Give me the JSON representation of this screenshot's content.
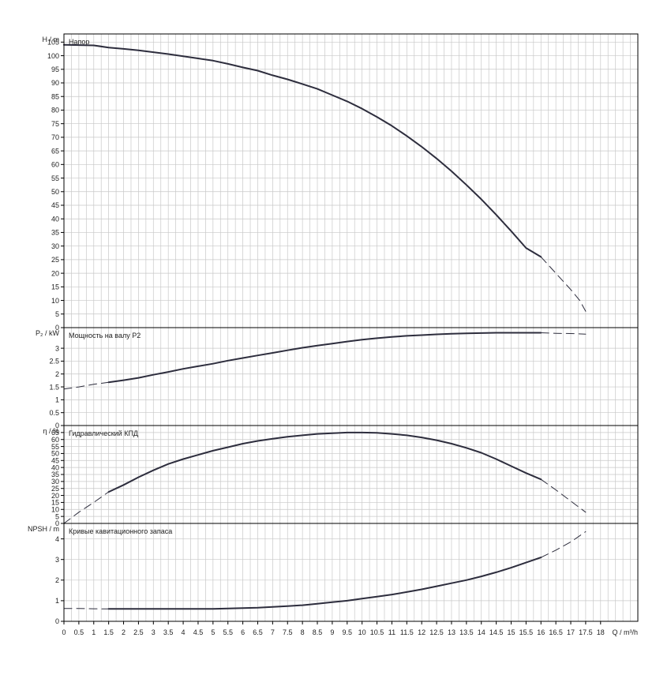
{
  "chart_data": {
    "type": "line",
    "x_axis": {
      "label": "Q / m³/h",
      "ticks": [
        0,
        0.5,
        1,
        1.5,
        2,
        2.5,
        3,
        3.5,
        4,
        4.5,
        5,
        5.5,
        6,
        6.5,
        7,
        7.5,
        8,
        8.5,
        9,
        9.5,
        10,
        10.5,
        11,
        11.5,
        12,
        12.5,
        13,
        13.5,
        14,
        14.5,
        15,
        15.5,
        16,
        16.5,
        17,
        17.5,
        18
      ],
      "tick_labels": [
        "0",
        "0.5",
        "1",
        "1.5",
        "2",
        "2.5",
        "3",
        "3.5",
        "4",
        "4.5",
        "5",
        "5.5",
        "6",
        "6.5",
        "7",
        "7.5",
        "8",
        "8.5",
        "9",
        "9.5",
        "10",
        "10.5",
        "11",
        "11.5",
        "12",
        "12.5",
        "13",
        "13.5",
        "14",
        "14.5",
        "15",
        "15.5",
        "16",
        "16.5",
        "17",
        "17.5",
        "18"
      ],
      "range": [
        0,
        19.25
      ],
      "grid": true
    },
    "panels": [
      {
        "id": "head",
        "title": "Напор",
        "ylabel": "H / m",
        "ylim": [
          0,
          108
        ],
        "yticks": [
          0,
          5,
          10,
          15,
          20,
          25,
          30,
          35,
          40,
          45,
          50,
          55,
          60,
          65,
          70,
          75,
          80,
          85,
          90,
          95,
          100,
          105
        ],
        "series_solid": [
          [
            0,
            104
          ],
          [
            1,
            103.8
          ],
          [
            1.5,
            103
          ],
          [
            2,
            102.5
          ],
          [
            2.5,
            102
          ],
          [
            3,
            101.3
          ],
          [
            3.5,
            100.6
          ],
          [
            4,
            99.8
          ],
          [
            4.5,
            99
          ],
          [
            5,
            98.2
          ],
          [
            5.5,
            97
          ],
          [
            6,
            95.7
          ],
          [
            6.5,
            94.5
          ],
          [
            7,
            92.8
          ],
          [
            7.5,
            91.3
          ],
          [
            8,
            89.6
          ],
          [
            8.5,
            87.8
          ],
          [
            9,
            85.5
          ],
          [
            9.5,
            83.2
          ],
          [
            10,
            80.5
          ],
          [
            10.5,
            77.5
          ],
          [
            11,
            74.2
          ],
          [
            11.5,
            70.5
          ],
          [
            12,
            66.5
          ],
          [
            12.5,
            62.2
          ],
          [
            13,
            57.5
          ],
          [
            13.5,
            52.5
          ],
          [
            14,
            47.2
          ],
          [
            14.5,
            41.5
          ],
          [
            15,
            35.5
          ],
          [
            15.5,
            29.3
          ],
          [
            16,
            26
          ]
        ],
        "series_dashed": [
          [
            16,
            26
          ],
          [
            16.5,
            20
          ],
          [
            17,
            14
          ],
          [
            17.3,
            10
          ],
          [
            17.5,
            6
          ]
        ]
      },
      {
        "id": "power",
        "title": "Мощность на валу P2",
        "ylabel": "P₂ / kW",
        "ylim": [
          0,
          3.8
        ],
        "yticks": [
          0,
          0.5,
          1,
          1.5,
          2,
          2.5,
          3
        ],
        "series_dashed": [
          [
            0,
            1.42
          ],
          [
            0.5,
            1.5
          ],
          [
            1,
            1.6
          ],
          [
            1.5,
            1.68
          ]
        ],
        "series_solid": [
          [
            1.5,
            1.68
          ],
          [
            2,
            1.76
          ],
          [
            2.5,
            1.85
          ],
          [
            3,
            1.97
          ],
          [
            3.5,
            2.08
          ],
          [
            4,
            2.2
          ],
          [
            4.5,
            2.3
          ],
          [
            5,
            2.4
          ],
          [
            5.5,
            2.52
          ],
          [
            6,
            2.62
          ],
          [
            6.5,
            2.72
          ],
          [
            7,
            2.82
          ],
          [
            7.5,
            2.92
          ],
          [
            8,
            3.02
          ],
          [
            8.5,
            3.1
          ],
          [
            9,
            3.18
          ],
          [
            9.5,
            3.26
          ],
          [
            10,
            3.33
          ],
          [
            10.5,
            3.39
          ],
          [
            11,
            3.44
          ],
          [
            11.5,
            3.48
          ],
          [
            12,
            3.51
          ],
          [
            12.5,
            3.54
          ],
          [
            13,
            3.56
          ],
          [
            13.5,
            3.58
          ],
          [
            14,
            3.59
          ],
          [
            14.5,
            3.6
          ],
          [
            15,
            3.6
          ],
          [
            15.5,
            3.6
          ],
          [
            16,
            3.6
          ]
        ],
        "series_dashed_end": [
          [
            16,
            3.6
          ],
          [
            16.5,
            3.58
          ],
          [
            17,
            3.57
          ],
          [
            17.5,
            3.55
          ]
        ]
      },
      {
        "id": "efficiency",
        "title": "Гидравлический КПД",
        "ylabel": "η / %",
        "ylim": [
          0,
          70
        ],
        "yticks": [
          0,
          5,
          10,
          15,
          20,
          25,
          30,
          35,
          40,
          45,
          50,
          55,
          60,
          65
        ],
        "series_dashed": [
          [
            0,
            0
          ],
          [
            0.5,
            8
          ],
          [
            1,
            15
          ],
          [
            1.5,
            22.5
          ]
        ],
        "series_solid": [
          [
            1.5,
            22.5
          ],
          [
            2,
            27.5
          ],
          [
            2.5,
            33
          ],
          [
            3,
            38
          ],
          [
            3.5,
            42.5
          ],
          [
            4,
            46
          ],
          [
            4.5,
            49
          ],
          [
            5,
            52
          ],
          [
            5.5,
            54.5
          ],
          [
            6,
            57
          ],
          [
            6.5,
            59
          ],
          [
            7,
            60.5
          ],
          [
            7.5,
            62
          ],
          [
            8,
            63
          ],
          [
            8.5,
            64
          ],
          [
            9,
            64.5
          ],
          [
            9.5,
            65
          ],
          [
            10,
            65
          ],
          [
            10.5,
            64.8
          ],
          [
            11,
            64
          ],
          [
            11.5,
            63
          ],
          [
            12,
            61.5
          ],
          [
            12.5,
            59.5
          ],
          [
            13,
            57
          ],
          [
            13.5,
            54
          ],
          [
            14,
            50.5
          ],
          [
            14.5,
            46
          ],
          [
            15,
            41
          ],
          [
            15.5,
            36
          ],
          [
            16,
            31.5
          ]
        ],
        "series_dashed_end": [
          [
            16,
            31.5
          ],
          [
            16.5,
            24
          ],
          [
            17,
            16
          ],
          [
            17.5,
            8
          ]
        ]
      },
      {
        "id": "npsh",
        "title": "Кривые кавитационного запаса",
        "ylabel": "NPSH / m",
        "ylim": [
          0,
          4.75
        ],
        "yticks": [
          0,
          1,
          2,
          3,
          4
        ],
        "series_dashed": [
          [
            0,
            0.62
          ],
          [
            0.5,
            0.62
          ],
          [
            1,
            0.61
          ],
          [
            1.5,
            0.6
          ]
        ],
        "series_solid": [
          [
            1.5,
            0.6
          ],
          [
            2,
            0.6
          ],
          [
            3,
            0.6
          ],
          [
            4,
            0.6
          ],
          [
            5,
            0.6
          ],
          [
            5.5,
            0.62
          ],
          [
            6,
            0.64
          ],
          [
            6.5,
            0.66
          ],
          [
            7,
            0.7
          ],
          [
            7.5,
            0.74
          ],
          [
            8,
            0.78
          ],
          [
            8.5,
            0.85
          ],
          [
            9,
            0.93
          ],
          [
            9.5,
            1.0
          ],
          [
            10,
            1.1
          ],
          [
            10.5,
            1.2
          ],
          [
            11,
            1.3
          ],
          [
            11.5,
            1.42
          ],
          [
            12,
            1.55
          ],
          [
            12.5,
            1.7
          ],
          [
            13,
            1.85
          ],
          [
            13.5,
            2.0
          ],
          [
            14,
            2.18
          ],
          [
            14.5,
            2.38
          ],
          [
            15,
            2.6
          ],
          [
            15.5,
            2.85
          ],
          [
            16,
            3.1
          ]
        ],
        "series_dashed_end": [
          [
            16,
            3.1
          ],
          [
            16.5,
            3.45
          ],
          [
            17,
            3.85
          ],
          [
            17.5,
            4.35
          ]
        ]
      }
    ]
  },
  "colors": {
    "grid": "#c8c8c8",
    "frame": "#000000",
    "curve": "#2d2d3d"
  }
}
